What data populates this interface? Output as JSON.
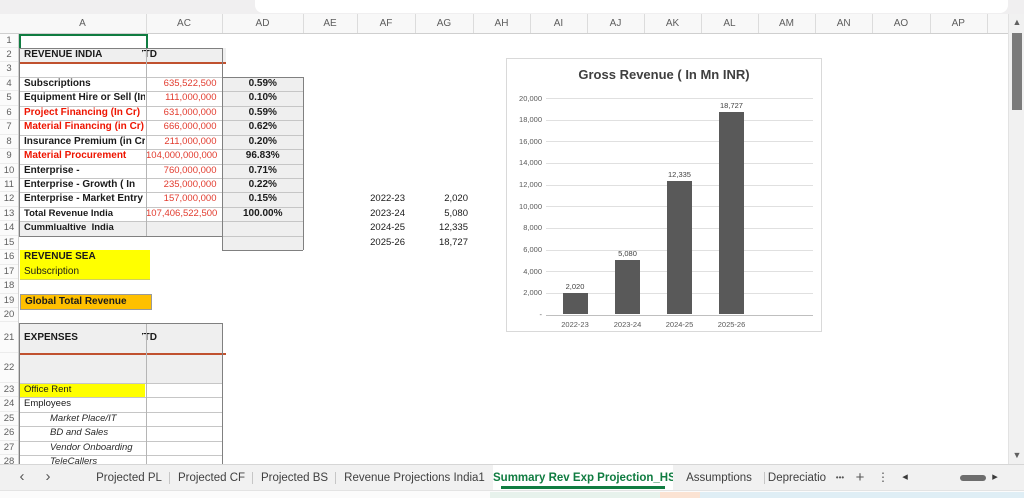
{
  "grid": {
    "columns": [
      "A",
      "AC",
      "AD",
      "AE",
      "AF",
      "AG",
      "AH",
      "AI",
      "AJ",
      "AK",
      "AL",
      "AM",
      "AN",
      "AO",
      "AP"
    ],
    "visible_row_count": 28
  },
  "revenue_table": {
    "title": "REVENUE INDIA",
    "ytd_label": "YTD",
    "rows": [
      {
        "label": "Subscriptions",
        "red": false,
        "value": "635,522,500",
        "pct": "0.59%"
      },
      {
        "label": "Equipment Hire or Sell (In",
        "red": false,
        "value": "111,000,000",
        "pct": "0.10%"
      },
      {
        "label": "Project Financing (In Cr)",
        "red": true,
        "value": "631,000,000",
        "pct": "0.59%"
      },
      {
        "label": "Material Financing (in Cr)",
        "red": true,
        "value": "666,000,000",
        "pct": "0.62%"
      },
      {
        "label": "Insurance Premium (in Cr)",
        "red": false,
        "value": "211,000,000",
        "pct": "0.20%"
      },
      {
        "label": "Material Procurement",
        "red": true,
        "value": "104,000,000,000",
        "pct": "96.83%"
      },
      {
        "label": "Enterprise -",
        "red": false,
        "value": "760,000,000",
        "pct": "0.71%"
      },
      {
        "label": "Enterprise - Growth ( In",
        "red": false,
        "value": "235,000,000",
        "pct": "0.22%"
      },
      {
        "label": "Enterprise - Market Entry",
        "red": false,
        "value": "157,000,000",
        "pct": "0.15%"
      }
    ],
    "total": {
      "label": "Total Revenue India",
      "value": "107,406,522,500",
      "pct": "100.00%"
    },
    "cumulative_label": "Cummlualtive  India"
  },
  "sections": {
    "revenue_sea": "REVENUE SEA",
    "subscription": "Subscription",
    "global_total": "Global Total Revenue"
  },
  "expenses_table": {
    "title": "EXPENSES",
    "ytd_label": "YTD",
    "rows": [
      {
        "label": "Office Rent",
        "style": "yellow"
      },
      {
        "label": "Employees",
        "style": "plain"
      },
      {
        "label": "Market Place/IT",
        "style": "italic"
      },
      {
        "label": "BD and Sales",
        "style": "italic"
      },
      {
        "label": "Vendor Onboarding",
        "style": "italic"
      },
      {
        "label": "TeleCallers",
        "style": "italic"
      }
    ]
  },
  "year_table": {
    "rows": [
      {
        "year": "2022-23",
        "value": "2,020"
      },
      {
        "year": "2023-24",
        "value": "5,080"
      },
      {
        "year": "2024-25",
        "value": "12,335"
      },
      {
        "year": "2025-26",
        "value": "18,727"
      }
    ]
  },
  "chart_data": {
    "type": "bar",
    "title": "Gross Revenue ( In Mn INR)",
    "categories": [
      "2022-23",
      "2023-24",
      "2024-25",
      "2025-26"
    ],
    "values": [
      2020,
      5080,
      12335,
      18727
    ],
    "data_labels": [
      "2,020",
      "5,080",
      "12,335",
      "18,727"
    ],
    "y_ticks": [
      "20,000",
      "18,000",
      "16,000",
      "14,000",
      "12,000",
      "10,000",
      "8,000",
      "6,000",
      "4,000",
      "2,000",
      "-"
    ],
    "ylim": [
      0,
      20000
    ],
    "xlabel": "",
    "ylabel": "",
    "grid": true,
    "legend": false,
    "bar_color": "#595959"
  },
  "sheet_tabs": {
    "prev_glyph": "‹",
    "next_glyph": "›",
    "tabs": [
      {
        "label": "Projected PL",
        "active": false
      },
      {
        "label": "Projected CF",
        "active": false
      },
      {
        "label": "Projected BS",
        "active": false
      },
      {
        "label": "Revenue Projections India1",
        "active": false
      },
      {
        "label": "Summary Rev Exp Projection_HS",
        "active": true
      },
      {
        "label": "Assumptions",
        "active": false
      },
      {
        "label": "Depreciatio",
        "active": false
      }
    ],
    "more_tabs_glyph": "•••",
    "new_sheet_glyph": "+",
    "menu_glyph": "⋮",
    "scroll_left_glyph": "◂",
    "scroll_right_glyph": "▸"
  },
  "icons": {
    "scroll_up_glyph": "▲",
    "scroll_down_glyph": "▼"
  },
  "colors": {
    "accent_rust": "#C0512F",
    "highlight_yellow": "#FFFF00",
    "highlight_orange": "#FFC000",
    "header_fill": "#efefef",
    "value_red": "#e23b2e",
    "label_red": "#ee1400",
    "tab_green": "#107C41",
    "bar_gray": "#595959",
    "status_strip_segments": [
      "#fbfbfb",
      "#e7f2ec",
      "#fbe3d3",
      "#dfeef5"
    ]
  }
}
